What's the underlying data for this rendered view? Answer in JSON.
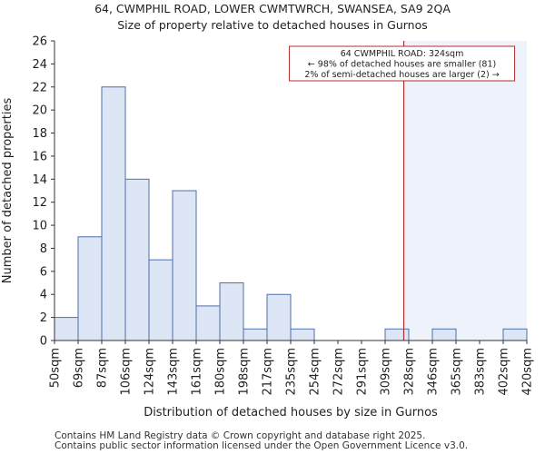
{
  "header": {
    "title": "64, CWMPHIL ROAD, LOWER CWMTWRCH, SWANSEA, SA9 2QA",
    "subtitle": "Size of property relative to detached houses in Gurnos"
  },
  "footer": {
    "line1": "Contains HM Land Registry data © Crown copyright and database right 2025.",
    "line2": "Contains public sector information licensed under the Open Government Licence v3.0."
  },
  "colors": {
    "bar_fill": "#dce6f4",
    "bar_stroke": "#4f6fad",
    "marker_line": "#b03030",
    "shade": "#eef2fa",
    "annotation_border": "#b03030"
  },
  "chart_data": {
    "type": "bar",
    "title": "Size of property relative to detached houses in Gurnos",
    "xlabel": "Distribution of detached houses by size in Gurnos",
    "ylabel": "Number of detached properties",
    "bin_edges": [
      "50sqm",
      "69sqm",
      "87sqm",
      "106sqm",
      "124sqm",
      "143sqm",
      "161sqm",
      "180sqm",
      "198sqm",
      "217sqm",
      "235sqm",
      "254sqm",
      "272sqm",
      "291sqm",
      "309sqm",
      "328sqm",
      "346sqm",
      "365sqm",
      "383sqm",
      "402sqm",
      "420sqm"
    ],
    "values": [
      2,
      9,
      22,
      14,
      7,
      13,
      3,
      5,
      1,
      4,
      1,
      0,
      0,
      0,
      1,
      0,
      1,
      0,
      0,
      1
    ],
    "ylim": [
      0,
      26
    ],
    "yticks": [
      0,
      2,
      4,
      6,
      8,
      10,
      12,
      14,
      16,
      18,
      20,
      22,
      24,
      26
    ],
    "marker": {
      "value_sqm": 324,
      "annotation": [
        "64 CWMPHIL ROAD: 324sqm",
        "← 98% of detached houses are smaller (81)",
        "2% of semi-detached houses are larger (2) →"
      ]
    },
    "grid": false
  }
}
